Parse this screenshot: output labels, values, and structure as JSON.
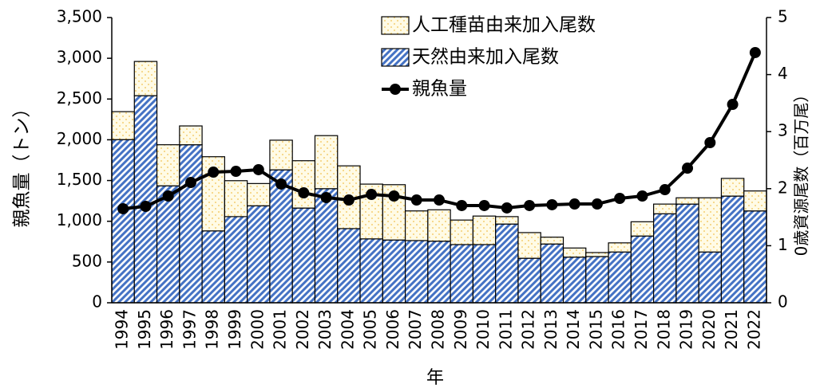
{
  "chart_data": {
    "type": "bar",
    "x_label": "年",
    "y_label": "親魚量（トン）",
    "y2_label": "0歳資源尾数（百万尾）",
    "categories": [
      "1994",
      "1995",
      "1996",
      "1997",
      "1998",
      "1999",
      "2000",
      "2001",
      "2002",
      "2003",
      "2004",
      "2005",
      "2006",
      "2007",
      "2008",
      "2009",
      "2010",
      "2011",
      "2012",
      "2013",
      "2014",
      "2015",
      "2016",
      "2017",
      "2018",
      "2019",
      "2020",
      "2021",
      "2022"
    ],
    "series": [
      {
        "name": "人工種苗由来加入尾数",
        "type": "bar",
        "axis": "y2",
        "color": "#f2c14e",
        "values": [
          0.49,
          0.6,
          0.72,
          0.33,
          1.3,
          0.63,
          0.39,
          0.52,
          0.83,
          0.93,
          1.1,
          0.96,
          0.97,
          0.52,
          0.55,
          0.43,
          0.5,
          0.13,
          0.45,
          0.12,
          0.16,
          0.07,
          0.16,
          0.25,
          0.17,
          0.11,
          0.95,
          0.31,
          0.35
        ]
      },
      {
        "name": "天然由来加入尾数",
        "type": "bar",
        "axis": "y2",
        "color": "#4472c4",
        "values": [
          2.86,
          3.63,
          2.05,
          2.77,
          1.26,
          1.51,
          1.7,
          2.33,
          1.66,
          2.0,
          1.3,
          1.12,
          1.1,
          1.09,
          1.08,
          1.02,
          1.02,
          1.38,
          0.78,
          1.03,
          0.8,
          0.81,
          0.89,
          1.17,
          1.56,
          1.73,
          0.89,
          1.87,
          1.61
        ]
      },
      {
        "name": "親魚量",
        "type": "line",
        "axis": "y",
        "color": "#000000",
        "values": [
          1154,
          1183,
          1310,
          1476,
          1603,
          1613,
          1633,
          1457,
          1349,
          1291,
          1261,
          1329,
          1310,
          1261,
          1261,
          1193,
          1193,
          1164,
          1193,
          1203,
          1212,
          1212,
          1281,
          1310,
          1388,
          1652,
          1965,
          2434,
          3070
        ]
      }
    ],
    "ylim": [
      0,
      3500
    ],
    "yticks": [
      0,
      500,
      {
        "value": 1000,
        "label": "1,000"
      },
      {
        "value": 1500,
        "label": "1,500"
      },
      {
        "value": 2000,
        "label": "2,000"
      },
      {
        "value": 2500,
        "label": "2,500"
      },
      {
        "value": 3000,
        "label": "3,000"
      },
      {
        "value": 3500,
        "label": "3,500"
      }
    ],
    "y2lim": [
      0,
      5
    ],
    "y2ticks": [
      0,
      1,
      2,
      3,
      4,
      5
    ],
    "legend": "top-right"
  }
}
